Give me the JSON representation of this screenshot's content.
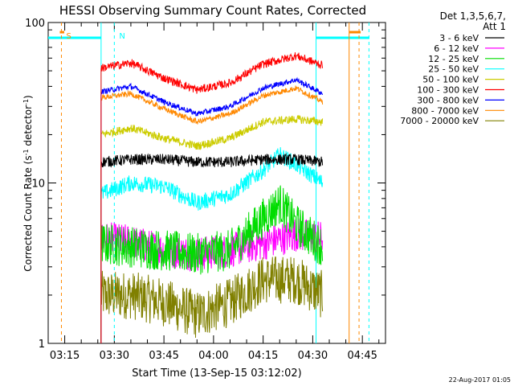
{
  "chart_data": {
    "type": "line",
    "title": "HESSI Observing Summary Count Rates, Corrected",
    "xlabel": "Start Time (13-Sep-15 03:12:02)",
    "ylabel": "Corrected Count Rate (s⁻¹ detector⁻¹)",
    "ylabel_main": "Corrected Count Rate (s",
    "ylabel_sup1": "-1",
    "ylabel_mid": " detector",
    "ylabel_sup2": "-1",
    "ylabel_end": ")",
    "y_scale": "log",
    "ylim": [
      1,
      100
    ],
    "xlim": [
      "03:10",
      "04:52"
    ],
    "x_ticks": [
      "03:15",
      "03:30",
      "03:45",
      "04:00",
      "04:15",
      "04:30",
      "04:45"
    ],
    "y_ticks": [
      "1",
      "10",
      "100"
    ],
    "legend_header": [
      "Det 1,3,5,6,7,",
      "Att 1"
    ],
    "legend_position": "right",
    "footer_date": "22-Aug-2017 01:05",
    "data_start": "03:26",
    "data_end": "04:33",
    "series": [
      {
        "name": "3 - 6 keV",
        "color": "#000000",
        "x": [
          "03:26",
          "03:35",
          "03:45",
          "03:55",
          "04:05",
          "04:15",
          "04:25",
          "04:33"
        ],
        "y": [
          13.5,
          14,
          14,
          13.5,
          13.5,
          14,
          14,
          13.5
        ]
      },
      {
        "name": "6 - 12 keV",
        "color": "#ff00ff",
        "x": [
          "03:26",
          "03:35",
          "03:45",
          "03:55",
          "04:05",
          "04:15",
          "04:25",
          "04:33"
        ],
        "y": [
          4.5,
          4.3,
          3.8,
          3.6,
          3.8,
          4.2,
          4.8,
          4.5
        ]
      },
      {
        "name": "12 - 25 keV",
        "color": "#00dd00",
        "x": [
          "03:26",
          "03:35",
          "03:45",
          "03:55",
          "04:05",
          "04:15",
          "04:20",
          "04:25",
          "04:33"
        ],
        "y": [
          4.2,
          4.0,
          3.8,
          3.6,
          3.8,
          6.0,
          7.5,
          5.5,
          4.0
        ]
      },
      {
        "name": "25 - 50 keV",
        "color": "#00ffff",
        "x": [
          "03:26",
          "03:35",
          "03:45",
          "03:55",
          "04:05",
          "04:15",
          "04:20",
          "04:25",
          "04:33"
        ],
        "y": [
          8.5,
          10,
          9.5,
          7.5,
          8.5,
          12,
          15,
          13,
          10
        ]
      },
      {
        "name": "50 - 100 keV",
        "color": "#cccc00",
        "x": [
          "03:26",
          "03:35",
          "03:45",
          "03:55",
          "04:05",
          "04:15",
          "04:25",
          "04:33"
        ],
        "y": [
          20,
          22,
          19,
          17,
          19,
          24,
          25,
          24
        ]
      },
      {
        "name": "100 - 300 keV",
        "color": "#ff0000",
        "x": [
          "03:26",
          "03:35",
          "03:45",
          "03:55",
          "04:05",
          "04:15",
          "04:25",
          "04:33"
        ],
        "y": [
          52,
          56,
          45,
          38,
          42,
          55,
          62,
          54
        ]
      },
      {
        "name": "300 - 800 keV",
        "color": "#0000ff",
        "x": [
          "03:26",
          "03:35",
          "03:45",
          "03:55",
          "04:05",
          "04:15",
          "04:25",
          "04:33"
        ],
        "y": [
          37,
          40,
          32,
          27,
          30,
          39,
          44,
          36
        ]
      },
      {
        "name": "800 - 7000 keV",
        "color": "#ff8800",
        "x": [
          "03:26",
          "03:35",
          "03:45",
          "03:55",
          "04:05",
          "04:15",
          "04:25",
          "04:33"
        ],
        "y": [
          34,
          36,
          29,
          24,
          27,
          35,
          39,
          32
        ]
      },
      {
        "name": "7000 - 20000 keV",
        "color": "#808000",
        "x": [
          "03:26",
          "03:35",
          "03:45",
          "03:55",
          "04:05",
          "04:15",
          "04:25",
          "04:33"
        ],
        "y": [
          2.0,
          2.0,
          1.8,
          1.5,
          1.8,
          2.5,
          2.5,
          2.0
        ]
      }
    ],
    "annotations": [
      {
        "label": "S",
        "type": "saa",
        "color": "#ff8800",
        "x_start": "03:12",
        "x_end": "03:14",
        "x_end_label_line": "03:14"
      },
      {
        "label": "N",
        "type": "night",
        "color": "#00ffff",
        "x_start": "03:12",
        "x_end": "03:26"
      }
    ],
    "markers": {
      "night_end": "03:26",
      "night_start": "04:31",
      "saa_start": "04:41",
      "saa_end_dash": "04:44",
      "night_dash_2": "04:47",
      "night_dash_1": "03:30",
      "saa_dash_1": "03:14"
    }
  }
}
